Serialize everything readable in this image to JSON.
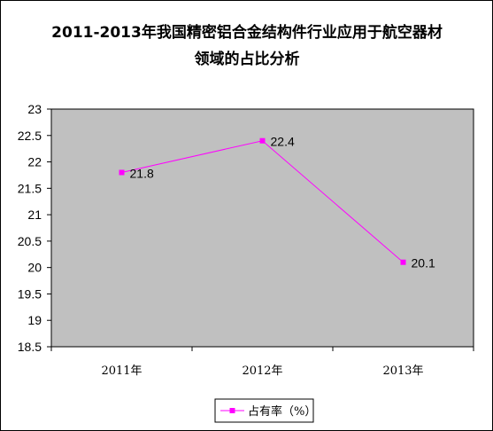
{
  "chart_data": {
    "type": "line",
    "title_lines": [
      "2011-2013年我国精密铝合金结构件行业应用于航空器材",
      "领域的占比分析"
    ],
    "categories": [
      "2011年",
      "2012年",
      "2013年"
    ],
    "series": [
      {
        "name": "占有率（%）",
        "values": [
          21.8,
          22.4,
          20.1
        ],
        "color": "#ff00ff"
      }
    ],
    "ylim": [
      18.5,
      23
    ],
    "yticks": [
      "18.5",
      "19",
      "19.5",
      "20",
      "20.5",
      "21",
      "21.5",
      "22",
      "22.5",
      "23"
    ],
    "data_labels": [
      "21.8",
      "22.4",
      "20.1"
    ],
    "legend_position": "bottom",
    "plot_background": "#c0c0c0",
    "grid": false
  }
}
